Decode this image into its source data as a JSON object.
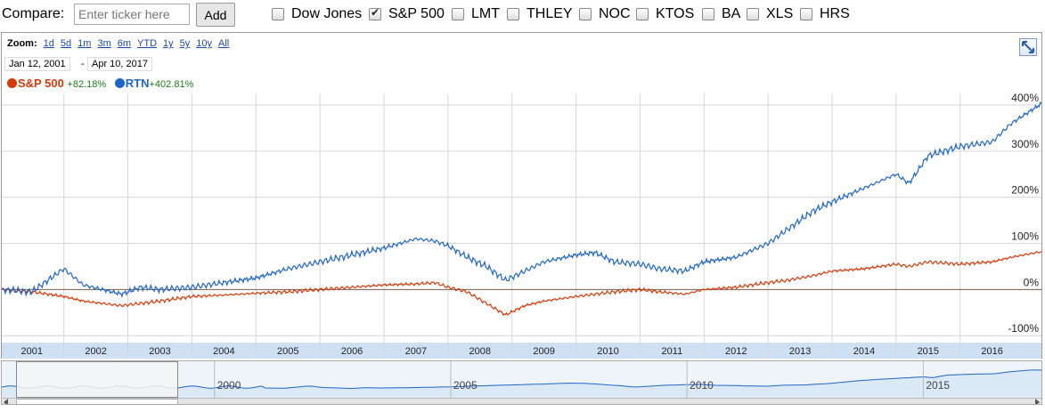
{
  "compare": {
    "label": "Compare:",
    "input_placeholder": "Enter ticker here",
    "add_label": "Add",
    "options": [
      {
        "label": "Dow Jones",
        "checked": false
      },
      {
        "label": "S&P 500",
        "checked": true
      },
      {
        "label": "LMT",
        "checked": false
      },
      {
        "label": "THLEY",
        "checked": false
      },
      {
        "label": "NOC",
        "checked": false
      },
      {
        "label": "KTOS",
        "checked": false
      },
      {
        "label": "BA",
        "checked": false
      },
      {
        "label": "XLS",
        "checked": false
      },
      {
        "label": "HRS",
        "checked": false
      }
    ]
  },
  "zoom": {
    "label": "Zoom:",
    "links": [
      "1d",
      "5d",
      "1m",
      "3m",
      "6m",
      "YTD",
      "1y",
      "5y",
      "10y",
      "All"
    ]
  },
  "date_range": {
    "start": "Jan 12, 2001",
    "separator": "-",
    "end": "Apr 10, 2017"
  },
  "chart_data": {
    "type": "line",
    "title": "",
    "xlabel": "",
    "ylabel": "",
    "x_ticks": [
      "2001",
      "2002",
      "2003",
      "2004",
      "2005",
      "2006",
      "2007",
      "2008",
      "2009",
      "2010",
      "2011",
      "2012",
      "2013",
      "2014",
      "2015",
      "2016"
    ],
    "y_ticks": [
      "400%",
      "300%",
      "200%",
      "100%",
      "0%",
      "-100%"
    ],
    "ylim": [
      -115,
      425
    ],
    "xlim": [
      2001.03,
      2017.27
    ],
    "grid": true,
    "legend_position": "top-left",
    "x": [
      2001.03,
      2001.5,
      2002.0,
      2002.3,
      2002.6,
      2002.9,
      2003.2,
      2003.5,
      2004.0,
      2004.5,
      2005.0,
      2005.5,
      2006.0,
      2006.5,
      2007.0,
      2007.5,
      2007.8,
      2008.0,
      2008.3,
      2008.6,
      2008.9,
      2009.2,
      2009.5,
      2010.0,
      2010.3,
      2010.6,
      2011.0,
      2011.3,
      2011.7,
      2012.0,
      2012.5,
      2013.0,
      2013.3,
      2013.7,
      2014.0,
      2014.5,
      2015.0,
      2015.2,
      2015.5,
      2016.0,
      2016.5,
      2016.8,
      2017.27
    ],
    "series": [
      {
        "name": "S&P 500",
        "label": "+82.18%",
        "color": "#d73a0a",
        "values": [
          0,
          -5,
          -15,
          -25,
          -30,
          -35,
          -30,
          -25,
          -15,
          -12,
          -8,
          -5,
          0,
          5,
          10,
          12,
          15,
          5,
          -5,
          -30,
          -55,
          -35,
          -25,
          -15,
          -10,
          -5,
          0,
          -5,
          -10,
          0,
          5,
          15,
          20,
          30,
          40,
          45,
          55,
          50,
          60,
          55,
          60,
          70,
          82.18
        ]
      },
      {
        "name": "RTN",
        "label": "+402.81%",
        "color": "#1f66c7",
        "values": [
          0,
          -5,
          45,
          10,
          0,
          -10,
          5,
          0,
          5,
          15,
          25,
          45,
          60,
          75,
          90,
          110,
          105,
          95,
          70,
          50,
          20,
          40,
          60,
          75,
          80,
          60,
          55,
          45,
          40,
          60,
          70,
          100,
          130,
          170,
          190,
          220,
          250,
          230,
          290,
          310,
          320,
          360,
          402.81
        ]
      }
    ]
  }
}
